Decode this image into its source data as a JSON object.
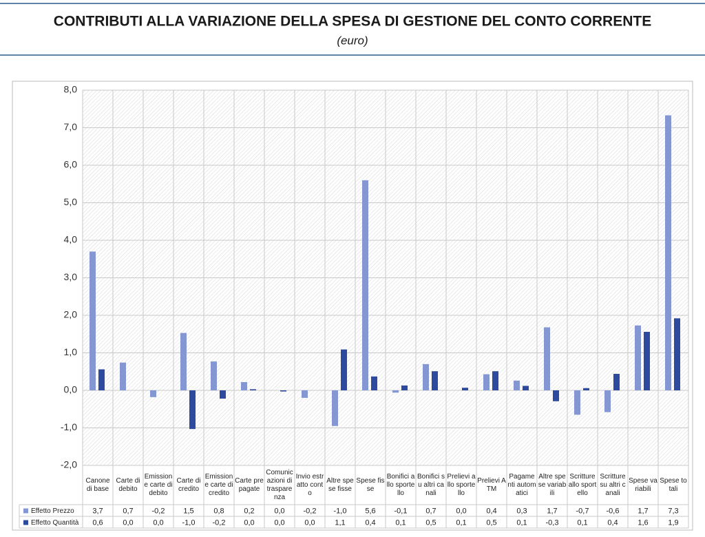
{
  "chart_data": {
    "type": "bar",
    "title": "CONTRIBUTI ALLA VARIAZIONE DELLA SPESA DI GESTIONE DEL CONTO CORRENTE",
    "subtitle": "(euro)",
    "categories": [
      "Canone di base",
      "Carte di debito",
      "Emissione carte di debito",
      "Carte di credito",
      "Emissione carte di credito",
      "Carte prepagate",
      "Comunicazioni di trasparenza",
      "Invio estratto conto",
      "Altre spese fisse",
      "Spese fisse",
      "Bonifici allo sportello",
      "Bonifici su altri canali",
      "Prelievi allo sportello",
      "Prelievi ATM",
      "Pagamenti automatici",
      "Altre spese variabili",
      "Scritture allo sportello",
      "Scritture su altri canali",
      "Spese variabili",
      "Spese totali"
    ],
    "series": [
      {
        "name": "Effetto Prezzo",
        "color": "#8497d3",
        "values": [
          3.7,
          0.74,
          -0.18,
          1.53,
          0.77,
          0.22,
          0.0,
          -0.2,
          -0.95,
          5.6,
          -0.06,
          0.7,
          0.0,
          0.43,
          0.26,
          1.68,
          -0.65,
          -0.58,
          1.73,
          7.33
        ],
        "value_labels": [
          "3,7",
          "0,7",
          "-0,2",
          "1,5",
          "0,8",
          "0,2",
          "0,0",
          "-0,2",
          "-1,0",
          "5,6",
          "-0,1",
          "0,7",
          "0,0",
          "0,4",
          "0,3",
          "1,7",
          "-0,7",
          "-0,6",
          "1,7",
          "7,3"
        ]
      },
      {
        "name": "Effetto Quantità",
        "color": "#2e4a9e",
        "values": [
          0.56,
          0.0,
          0.0,
          -1.03,
          -0.22,
          0.03,
          -0.03,
          0.0,
          1.09,
          0.37,
          0.13,
          0.51,
          0.07,
          0.51,
          0.12,
          -0.29,
          0.06,
          0.44,
          1.56,
          1.92
        ],
        "value_labels": [
          "0,6",
          "0,0",
          "0,0",
          "-1,0",
          "-0,2",
          "0,0",
          "0,0",
          "0,0",
          "1,1",
          "0,4",
          "0,1",
          "0,5",
          "0,1",
          "0,5",
          "0,1",
          "-0,3",
          "0,1",
          "0,4",
          "1,6",
          "1,9"
        ]
      }
    ],
    "ylim": [
      -2,
      8
    ],
    "yticks": [
      {
        "value": -2,
        "label": "-2,0"
      },
      {
        "value": -1,
        "label": "-1,0"
      },
      {
        "value": 0,
        "label": "0,0"
      },
      {
        "value": 1,
        "label": "1,0"
      },
      {
        "value": 2,
        "label": "2,0"
      },
      {
        "value": 3,
        "label": "3,0"
      },
      {
        "value": 4,
        "label": "4,0"
      },
      {
        "value": 5,
        "label": "5,0"
      },
      {
        "value": 6,
        "label": "6,0"
      },
      {
        "value": 7,
        "label": "7,0"
      },
      {
        "value": 8,
        "label": "8,0"
      }
    ],
    "grid": true
  }
}
